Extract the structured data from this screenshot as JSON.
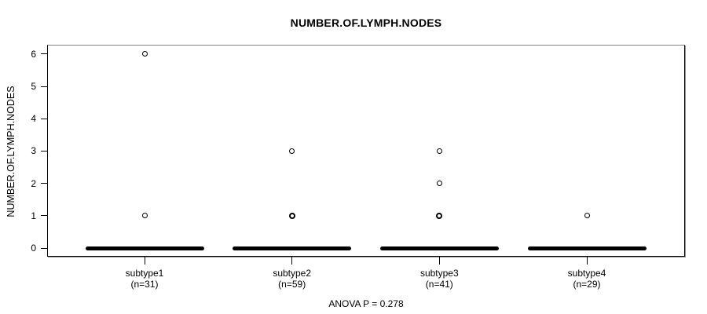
{
  "chart_data": {
    "type": "boxplot",
    "title": "NUMBER.OF.LYMPH.NODES",
    "ylabel": "NUMBER.OF.LYMPH.NODES",
    "xlabel": "",
    "ylim": [
      0,
      6
    ],
    "yticks": [
      0,
      1,
      2,
      3,
      4,
      5,
      6
    ],
    "grid": false,
    "annotation": "ANOVA P = 0.278",
    "groups": [
      {
        "label": "subtype1",
        "sublabel": "(n=31)",
        "n": 31,
        "median": 0,
        "q1": 0,
        "q3": 0,
        "whisker_low": 0,
        "whisker_high": 0,
        "outliers": [
          {
            "value": 1,
            "overplotted": false
          },
          {
            "value": 6,
            "overplotted": false
          }
        ]
      },
      {
        "label": "subtype2",
        "sublabel": "(n=59)",
        "n": 59,
        "median": 0,
        "q1": 0,
        "q3": 0,
        "whisker_low": 0,
        "whisker_high": 0,
        "outliers": [
          {
            "value": 1,
            "overplotted": true
          },
          {
            "value": 3,
            "overplotted": false
          }
        ]
      },
      {
        "label": "subtype3",
        "sublabel": "(n=41)",
        "n": 41,
        "median": 0,
        "q1": 0,
        "q3": 0,
        "whisker_low": 0,
        "whisker_high": 0,
        "outliers": [
          {
            "value": 1,
            "overplotted": true
          },
          {
            "value": 2,
            "overplotted": false
          },
          {
            "value": 3,
            "overplotted": false
          }
        ]
      },
      {
        "label": "subtype4",
        "sublabel": "(n=29)",
        "n": 29,
        "median": 0,
        "q1": 0,
        "q3": 0,
        "whisker_low": 0,
        "whisker_high": 0,
        "outliers": [
          {
            "value": 1,
            "overplotted": false
          }
        ]
      }
    ],
    "colors": {
      "box": "#000000",
      "outlier_stroke": "#000000",
      "frame": "#000000",
      "frame_top": "#848484",
      "background": "#ffffff",
      "text": "#000000"
    }
  }
}
